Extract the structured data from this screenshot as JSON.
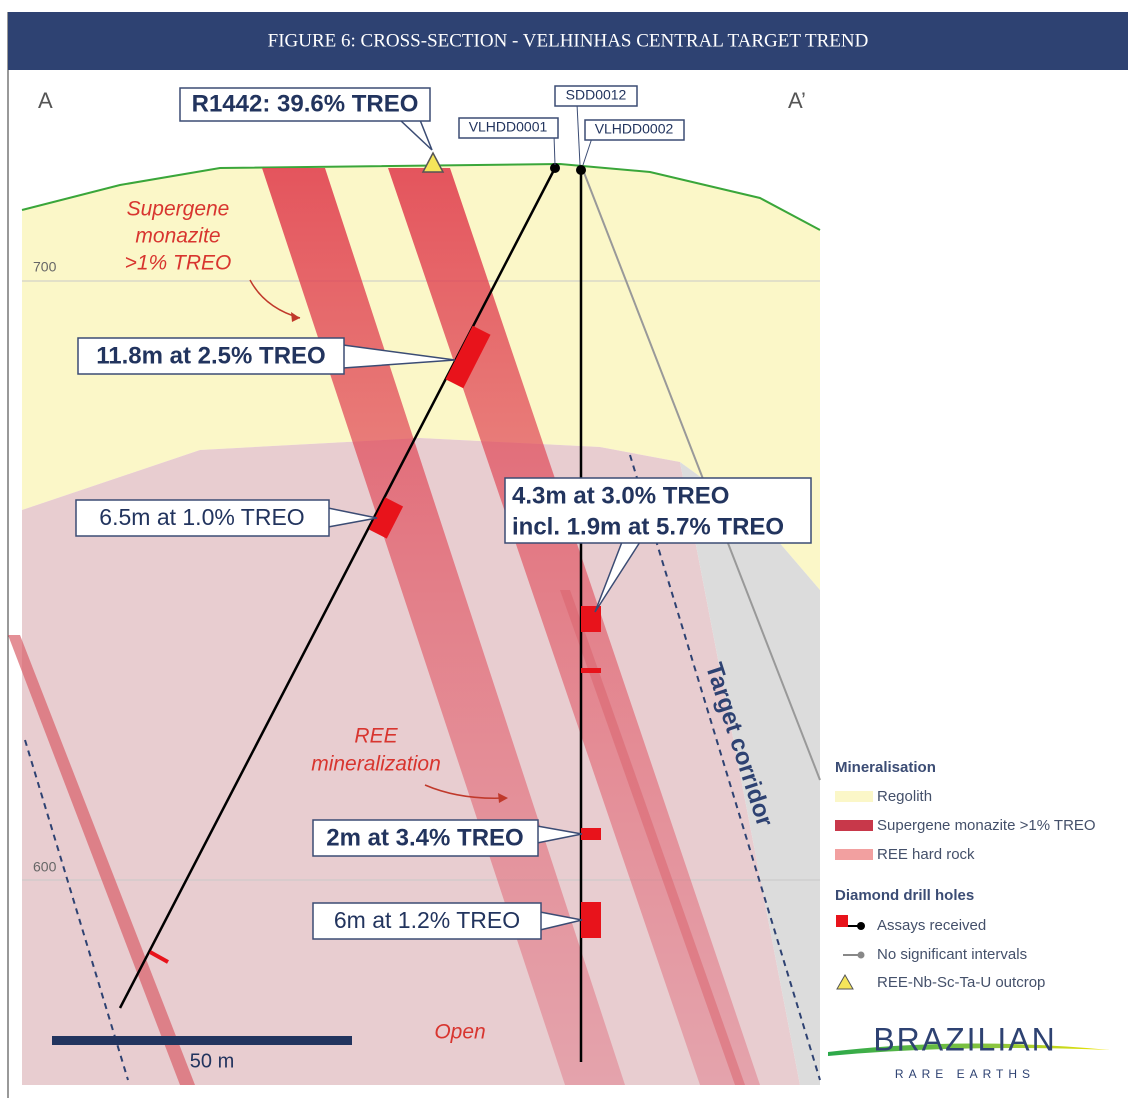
{
  "header": {
    "title": "FIGURE 6: CROSS-SECTION - VELHINHAS CENTRAL TARGET TREND"
  },
  "section": {
    "start": "A",
    "end": "A’",
    "elevations": [
      700,
      600
    ],
    "scale_bar": "50 m"
  },
  "drill_holes": [
    "VLHDD0001",
    "SDD0012",
    "VLHDD0002"
  ],
  "outcrop": "R1442: 39.6% TREO",
  "intercepts": [
    "11.8m at 2.5% TREO",
    "6.5m at 1.0% TREO",
    "4.3m at 3.0% TREO",
    "incl. 1.9m at 5.7% TREO",
    "2m at 3.4% TREO",
    "6m at 1.2% TREO"
  ],
  "annotations": {
    "supergene": [
      "Supergene",
      "monazite",
      ">1% TREO"
    ],
    "ree": [
      "REE",
      "mineralization"
    ],
    "open": "Open",
    "corridor": "Target corridor"
  },
  "legend": {
    "mineralisation": {
      "title": "Mineralisation",
      "items": [
        "Regolith",
        "Supergene monazite >1% TREO",
        "REE  hard rock"
      ]
    },
    "drill_holes": {
      "title": "Diamond drill holes",
      "items": [
        "Assays received",
        "No significant intervals",
        "REE-Nb-Sc-Ta-U outcrop"
      ]
    }
  },
  "logo": {
    "name": "BRAZILIAN",
    "tagline": "RARE EARTHS"
  }
}
